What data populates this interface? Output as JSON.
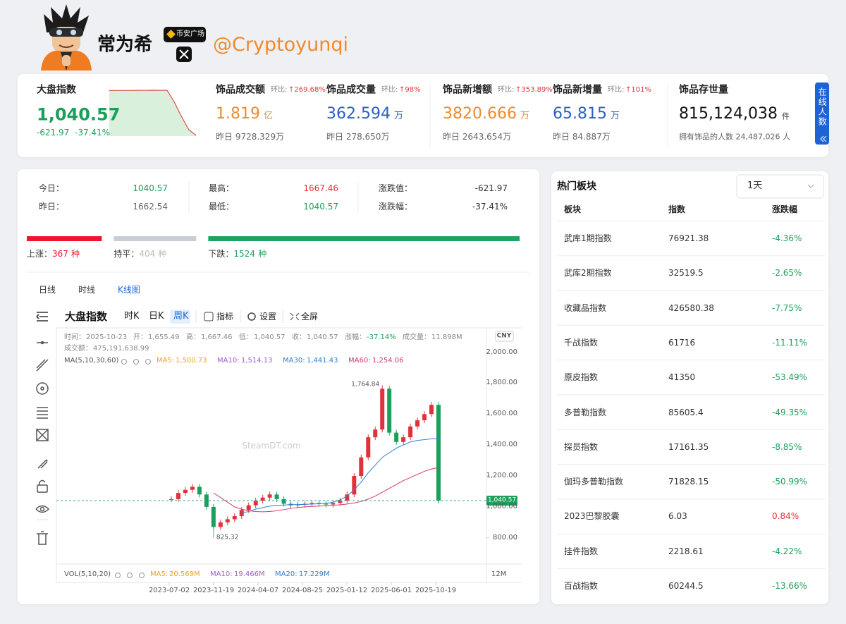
{
  "header": {
    "name": "常为希",
    "badge": "币安广场",
    "handle": "@Cryptoyunqi"
  },
  "summary": {
    "index": {
      "title": "大盘指数",
      "value": "1,040.57",
      "change": "-621.97",
      "change_pct": "-37.41%",
      "sparkline": [
        1660,
        1661,
        1662,
        1661,
        1663,
        1662,
        1664,
        1663,
        1662.54,
        1500,
        1300,
        1120,
        1040.57
      ]
    },
    "metrics": [
      {
        "title": "饰品成交额",
        "ratio_label": "环比:",
        "ratio": "↑269.68%",
        "value": "1.819",
        "unit": "亿",
        "yesterday": "昨日 9728.329万",
        "color": "#f08a2c"
      },
      {
        "title": "饰品成交量",
        "ratio_label": "环比:",
        "ratio": "↑98%",
        "value": "362.594",
        "unit": "万",
        "yesterday": "昨日 278.650万",
        "color": "#2a5fc4"
      },
      {
        "title": "饰品新增额",
        "ratio_label": "环比:",
        "ratio": "↑353.89%",
        "value": "3820.666",
        "unit": "万",
        "yesterday": "昨日 2643.654万",
        "color": "#f08a2c"
      },
      {
        "title": "饰品新增量",
        "ratio_label": "环比:",
        "ratio": "↑101%",
        "value": "65.815",
        "unit": "万",
        "yesterday": "昨日 84.887万",
        "color": "#2a5fc4"
      }
    ],
    "stock": {
      "title": "饰品存世量",
      "value": "815,124,038",
      "unit": "件",
      "owners": "拥有饰品的人数 24,487,026 人"
    },
    "online_tab": "在线人数"
  },
  "market": {
    "stats": [
      {
        "label": "今日：",
        "value": "1040.57",
        "color": "#1aa05a"
      },
      {
        "label": "昨日：",
        "value": "1662.54",
        "color": "#666666"
      },
      {
        "label": "最高：",
        "value": "1667.46",
        "color": "#e0323a"
      },
      {
        "label": "最低：",
        "value": "1040.57",
        "color": "#1aa05a"
      },
      {
        "label": "涨跌值：",
        "value": "-621.97",
        "color": "#333333"
      },
      {
        "label": "涨跌幅：",
        "value": "-37.41%",
        "color": "#333333"
      }
    ],
    "breadth": [
      {
        "label": "上涨：",
        "count": 367,
        "unit": "种",
        "color": "#f0142f"
      },
      {
        "label": "持平：",
        "count": 404,
        "unit": "种",
        "color": "#c9ced6"
      },
      {
        "label": "下跌：",
        "count": 1524,
        "unit": "种",
        "color": "#1ea362"
      }
    ],
    "tabs": [
      "日线",
      "时线",
      "K线图"
    ]
  },
  "kline": {
    "toolbar": {
      "title": "大盘指数",
      "periods": [
        "时K",
        "日K",
        "周K"
      ],
      "buttons": [
        "指标",
        "设置",
        "全屏"
      ]
    },
    "currency": "CNY",
    "info": [
      {
        "label": "时间：",
        "value": "2025-10-23"
      },
      {
        "label": "开：",
        "value": "1,655.49"
      },
      {
        "label": "高：",
        "value": "1,667.46"
      },
      {
        "label": "低：",
        "value": "1,040.57"
      },
      {
        "label": "收：",
        "value": "1,040.57"
      },
      {
        "label": "涨幅：",
        "value": "-37.14%"
      },
      {
        "label": "成交量：",
        "value": "11.898M"
      },
      {
        "label": "成交额：",
        "value": "475,191,638.99"
      }
    ],
    "ma_title": "MA(5,10,30,60)",
    "ma": [
      {
        "name": "MA5:",
        "value": "1,500.73",
        "color": "#f0a020"
      },
      {
        "name": "MA10:",
        "value": "1,514.13",
        "color": "#a05cc8"
      },
      {
        "name": "MA30:",
        "value": "1,441.43",
        "color": "#2f7fd6",
        "values": [
          null,
          null,
          null,
          null,
          null,
          null,
          null,
          null,
          null,
          null,
          960,
          970,
          985,
          995,
          1005,
          1010,
          1012,
          1014,
          1015,
          1016,
          1018,
          1020,
          1022,
          1030,
          1045,
          1070,
          1110,
          1160,
          1220,
          1270,
          1320,
          1350,
          1380,
          1400,
          1420,
          1430,
          1435,
          1440,
          1441.43
        ]
      },
      {
        "name": "MA60:",
        "value": "1,254.06",
        "color": "#d23a6e",
        "values": [
          null,
          null,
          null,
          null,
          null,
          null,
          1090,
          1060,
          1030,
          1000,
          985,
          975,
          970,
          968,
          970,
          975,
          982,
          990,
          996,
          1000,
          1003,
          1005,
          1008,
          1010,
          1013,
          1018,
          1025,
          1035,
          1050,
          1070,
          1095,
          1120,
          1145,
          1170,
          1190,
          1210,
          1230,
          1245,
          1254.06
        ]
      }
    ],
    "vol_title": "VOL(5,10,20)",
    "vol_ma": [
      {
        "name": "MA5:",
        "value": "20.569M",
        "color": "#f0a020"
      },
      {
        "name": "MA10:",
        "value": "19.466M",
        "color": "#a05cc8"
      },
      {
        "name": "MA20:",
        "value": "17.229M",
        "color": "#2f7fd6"
      }
    ],
    "vol_tick": "12M",
    "watermark": "SteamDT.com",
    "ylim": [
      630,
      2135
    ],
    "yticks": [
      {
        "value": 800,
        "label": "800.00"
      },
      {
        "value": 1000,
        "label": "1,000.00"
      },
      {
        "value": 1200,
        "label": "1,200.00"
      },
      {
        "value": 1400,
        "label": "1,400.00"
      },
      {
        "value": 1600,
        "label": "1,600.00"
      },
      {
        "value": 1800,
        "label": "1,800.00"
      },
      {
        "value": 2000,
        "label": "2,000.00"
      }
    ],
    "dates": [
      "2023-07-02",
      "2023-11-19",
      "2024-04-07",
      "2024-08-25",
      "2025-01-12",
      "2025-06-01",
      "2025-10-19"
    ],
    "closes": [
      1050,
      1090,
      1110,
      1130,
      1080,
      1000,
      870,
      900,
      920,
      940,
      980,
      1010,
      1040,
      1060,
      1080,
      1050,
      1020,
      1010,
      1015,
      1020,
      1025,
      1020,
      1015,
      1025,
      1040,
      1080,
      1200,
      1320,
      1450,
      1500,
      1764,
      1480,
      1420,
      1450,
      1520,
      1560,
      1600,
      1660,
      1040.57
    ],
    "high_label": "1,764.84",
    "low_label": "825.32",
    "last_label": "1,040.57",
    "up_color": "#e0323a",
    "down_color": "#1aa05a"
  },
  "hot": {
    "title": "热门板块",
    "period": "1天",
    "headers": [
      "板块",
      "指数",
      "涨跌幅"
    ],
    "rows": [
      [
        "武库1期指数",
        "76921.38",
        "-4.36%"
      ],
      [
        "武库2期指数",
        "32519.5",
        "-2.65%"
      ],
      [
        "收藏品指数",
        "426580.38",
        "-7.75%"
      ],
      [
        "千战指数",
        "61716",
        "-11.11%"
      ],
      [
        "原皮指数",
        "41350",
        "-53.49%"
      ],
      [
        "多普勒指数",
        "85605.4",
        "-49.35%"
      ],
      [
        "探员指数",
        "17161.35",
        "-8.85%"
      ],
      [
        "伽玛多普勒指数",
        "71828.15",
        "-50.99%"
      ],
      [
        "2023巴黎胶囊",
        "6.03",
        "0.84%"
      ],
      [
        "挂件指数",
        "2218.61",
        "-4.22%"
      ],
      [
        "百战指数",
        "60244.5",
        "-13.66%"
      ]
    ]
  }
}
